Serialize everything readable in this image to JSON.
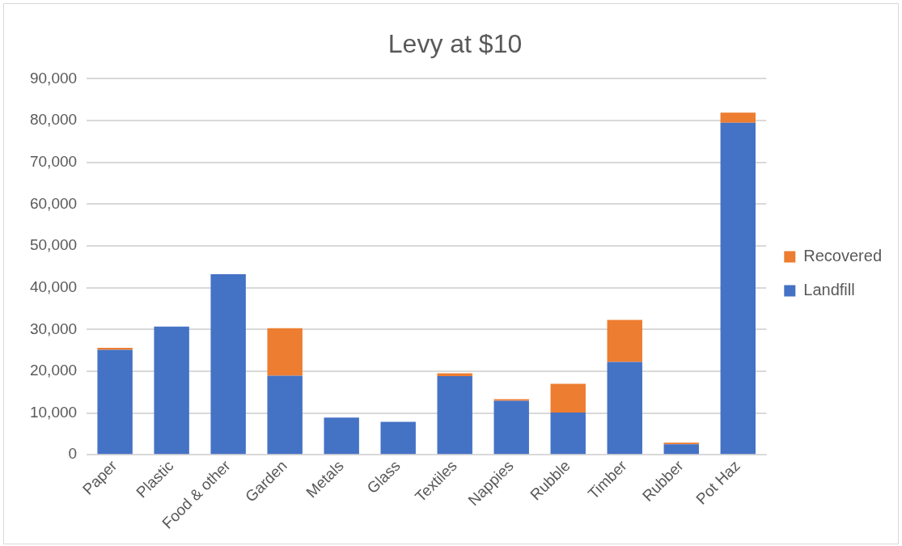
{
  "chart_data": {
    "type": "bar",
    "title": "Levy at $10",
    "stacked": true,
    "categories": [
      "Paper",
      "Plastic",
      "Food & other",
      "Garden",
      "Metals",
      "Glass",
      "Textiles",
      "Nappies",
      "Rubble",
      "Timber",
      "Rubber",
      "Pot Haz"
    ],
    "series": [
      {
        "name": "Landfill",
        "color": "#4472c4",
        "values": [
          25100,
          30700,
          43200,
          18900,
          8900,
          7900,
          18800,
          12900,
          10100,
          22200,
          2500,
          79500
        ]
      },
      {
        "name": "Recovered",
        "color": "#ed7d31",
        "values": [
          500,
          0,
          0,
          11400,
          0,
          0,
          700,
          400,
          6900,
          10100,
          400,
          2400
        ]
      }
    ],
    "ylim": [
      0,
      90000
    ],
    "yticks": [
      0,
      {
        "value": 10000,
        "label": "10,000"
      },
      {
        "value": 20000,
        "label": "20,000"
      },
      {
        "value": 30000,
        "label": "30,000"
      },
      {
        "value": 40000,
        "label": "40,000"
      },
      {
        "value": 50000,
        "label": "50,000"
      },
      {
        "value": 60000,
        "label": "60,000"
      },
      {
        "value": 70000,
        "label": "70,000"
      },
      {
        "value": 80000,
        "label": "80,000"
      },
      {
        "value": 90000,
        "label": "90,000"
      }
    ],
    "grid": "y",
    "legend": "right"
  }
}
